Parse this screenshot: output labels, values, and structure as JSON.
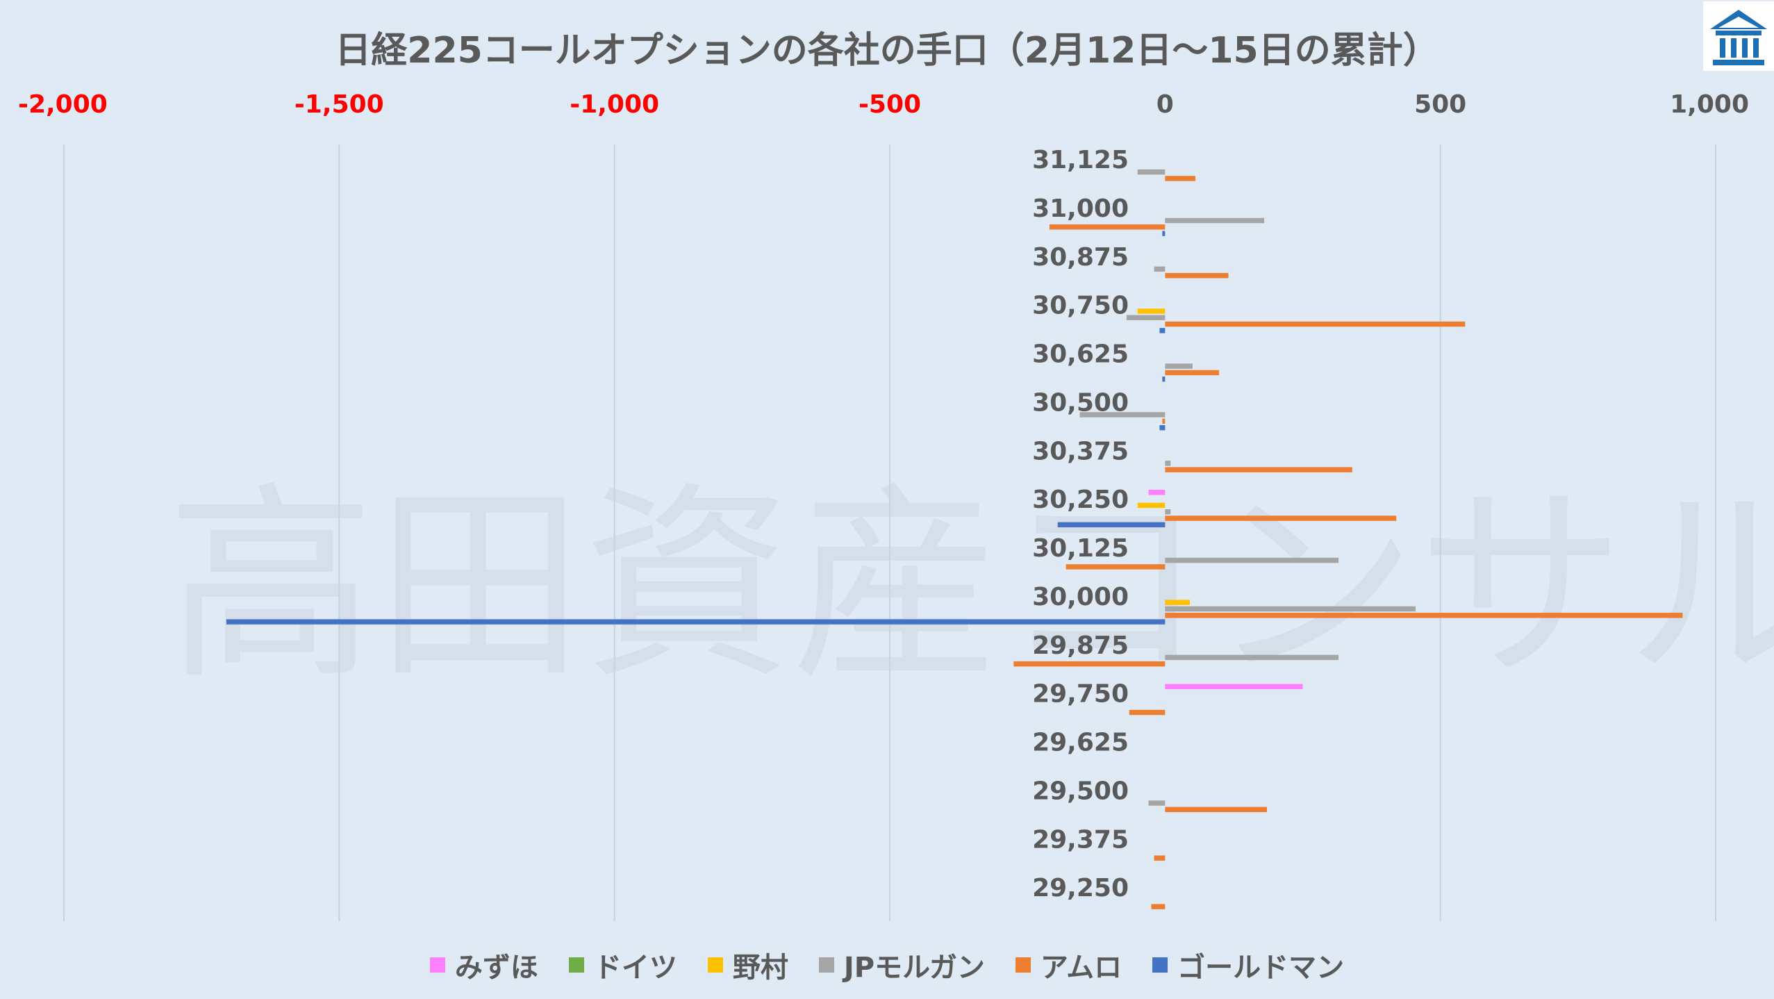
{
  "chart_data": {
    "type": "bar",
    "orientation": "horizontal",
    "title": "日経225コールオプションの各社の手口（2月12日～15日の累計）",
    "xlim": [
      -2000,
      1000
    ],
    "x_ticks": [
      -2000,
      -1500,
      -1000,
      -500,
      0,
      500,
      1000
    ],
    "x_tick_labels": [
      "-2,000",
      "-1,500",
      "-1,000",
      "-500",
      "0",
      "500",
      "1,000"
    ],
    "negative_tick_color": "#ff0000",
    "gridlines": "vertical",
    "legend_position": "bottom",
    "categories": [
      "31,125",
      "31,000",
      "30,875",
      "30,750",
      "30,625",
      "30,500",
      "30,375",
      "30,250",
      "30,125",
      "30,000",
      "29,875",
      "29,750",
      "29,625",
      "29,500",
      "29,375",
      "29,250"
    ],
    "series": [
      {
        "name": "みずほ",
        "color": "#ff7fff",
        "values": [
          0,
          0,
          0,
          0,
          0,
          0,
          0,
          -30,
          0,
          0,
          0,
          250,
          0,
          0,
          0,
          0
        ]
      },
      {
        "name": "ドイツ",
        "color": "#70ad47",
        "values": [
          0,
          0,
          0,
          0,
          0,
          0,
          0,
          0,
          0,
          0,
          0,
          0,
          0,
          0,
          0,
          0
        ]
      },
      {
        "name": "野村",
        "color": "#ffc000",
        "values": [
          0,
          0,
          0,
          -50,
          0,
          0,
          0,
          -50,
          0,
          45,
          0,
          0,
          0,
          0,
          0,
          0
        ]
      },
      {
        "name": "JPモルガン",
        "color": "#a5a5a5",
        "values": [
          -50,
          180,
          -20,
          -70,
          50,
          -155,
          10,
          10,
          315,
          455,
          315,
          0,
          0,
          -30,
          0,
          0
        ]
      },
      {
        "name": "アムロ",
        "color": "#ed7d31",
        "values": [
          55,
          -210,
          115,
          545,
          98,
          -5,
          340,
          420,
          -180,
          940,
          -275,
          -65,
          0,
          185,
          -20,
          -25
        ]
      },
      {
        "name": "ゴールドマン",
        "color": "#4472c4",
        "values": [
          0,
          -5,
          0,
          -10,
          -5,
          -10,
          0,
          -195,
          0,
          -1705,
          0,
          0,
          0,
          0,
          0,
          0
        ]
      }
    ]
  },
  "watermark": "高田資産コンサル",
  "logo": {
    "icon": "bank-building-icon",
    "color": "#1f6fb5"
  }
}
